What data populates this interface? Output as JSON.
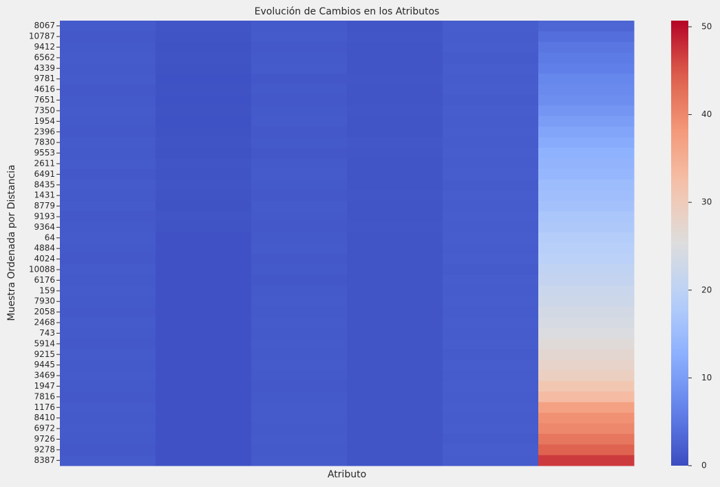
{
  "chart_data": {
    "type": "heatmap",
    "title": "Evolución de Cambios en los Atributos",
    "xlabel": "Atributo",
    "ylabel": "Muestra Ordenada por Distancia",
    "columns": [
      null,
      null,
      null,
      null,
      null,
      null
    ],
    "categories": [
      "8067",
      "10787",
      "9412",
      "6562",
      "4339",
      "9781",
      "4616",
      "7651",
      "7350",
      "1954",
      "2396",
      "7830",
      "9553",
      "2611",
      "6491",
      "8435",
      "1431",
      "8779",
      "9193",
      "9364",
      "64",
      "4884",
      "4024",
      "10088",
      "6176",
      "159",
      "7930",
      "2058",
      "2468",
      "743",
      "5914",
      "9215",
      "9445",
      "3469",
      "1947",
      "7816",
      "1176",
      "8410",
      "6972",
      "9726",
      "9278",
      "8387"
    ],
    "values": [
      [
        1.6,
        1.0,
        1.5,
        1.1,
        1.9,
        3
      ],
      [
        1.4,
        0.9,
        1.6,
        1.2,
        1.8,
        4
      ],
      [
        1.5,
        0.8,
        1.4,
        1.0,
        2.0,
        5
      ],
      [
        1.7,
        0.9,
        1.5,
        1.1,
        1.7,
        5.5
      ],
      [
        1.5,
        0.8,
        1.6,
        1.0,
        1.9,
        6
      ],
      [
        1.6,
        0.7,
        1.3,
        1.2,
        1.8,
        7
      ],
      [
        1.4,
        0.8,
        1.5,
        1.1,
        2.0,
        7.5
      ],
      [
        1.5,
        0.7,
        1.4,
        1.0,
        1.7,
        8
      ],
      [
        1.6,
        0.8,
        1.5,
        1.2,
        1.9,
        9
      ],
      [
        1.5,
        0.7,
        1.6,
        1.1,
        1.8,
        10
      ],
      [
        1.4,
        0.8,
        1.4,
        1.0,
        2.0,
        11
      ],
      [
        1.6,
        0.9,
        1.5,
        1.3,
        1.8,
        12
      ],
      [
        1.5,
        0.8,
        1.3,
        1.2,
        1.9,
        13
      ],
      [
        1.7,
        1.0,
        1.5,
        1.1,
        1.8,
        13.5
      ],
      [
        1.4,
        0.9,
        1.6,
        1.0,
        2.0,
        14
      ],
      [
        1.6,
        1.0,
        1.5,
        1.1,
        1.7,
        15
      ],
      [
        1.5,
        0.9,
        1.4,
        1.2,
        1.9,
        15.5
      ],
      [
        1.6,
        0.8,
        1.6,
        1.1,
        1.8,
        16
      ],
      [
        1.4,
        1.0,
        1.5,
        1.0,
        2.0,
        17
      ],
      [
        1.5,
        0.9,
        1.4,
        1.2,
        1.8,
        17.5
      ],
      [
        1.6,
        0.6,
        1.5,
        1.1,
        1.9,
        18.5
      ],
      [
        1.5,
        0.6,
        1.6,
        1.0,
        1.8,
        19
      ],
      [
        1.4,
        0.6,
        1.4,
        1.1,
        2.0,
        19.5
      ],
      [
        1.6,
        0.6,
        1.5,
        1.0,
        1.7,
        20.5
      ],
      [
        1.5,
        0.6,
        1.3,
        1.1,
        1.9,
        21
      ],
      [
        1.6,
        0.6,
        1.5,
        1.0,
        1.8,
        22
      ],
      [
        1.5,
        0.6,
        1.6,
        1.1,
        2.0,
        22.5
      ],
      [
        1.4,
        0.6,
        1.5,
        1.0,
        1.8,
        23.5
      ],
      [
        1.6,
        0.6,
        1.7,
        1.1,
        1.9,
        24
      ],
      [
        1.5,
        0.6,
        1.5,
        1.0,
        1.8,
        25
      ],
      [
        1.4,
        0.6,
        1.6,
        1.1,
        2.0,
        26
      ],
      [
        1.6,
        0.6,
        1.5,
        1.0,
        1.7,
        27
      ],
      [
        1.5,
        0.6,
        1.6,
        1.1,
        1.9,
        28
      ],
      [
        1.6,
        0.6,
        1.5,
        1.0,
        1.8,
        29
      ],
      [
        1.5,
        0.6,
        1.4,
        1.1,
        2.0,
        31
      ],
      [
        1.4,
        0.6,
        1.5,
        1.0,
        1.8,
        33
      ],
      [
        1.6,
        0.6,
        1.7,
        1.1,
        1.9,
        37
      ],
      [
        1.5,
        0.6,
        1.6,
        1.0,
        1.8,
        39
      ],
      [
        1.6,
        0.6,
        1.5,
        1.1,
        2.0,
        40
      ],
      [
        1.5,
        0.6,
        1.6,
        1.0,
        1.7,
        42
      ],
      [
        1.4,
        0.6,
        1.5,
        1.1,
        1.9,
        44
      ],
      [
        1.6,
        0.6,
        1.6,
        1.0,
        1.8,
        47
      ]
    ],
    "colormap": "coolwarm",
    "clim": [
      0,
      50.7
    ],
    "cticks": [
      0,
      10,
      20,
      30,
      40,
      50
    ]
  }
}
